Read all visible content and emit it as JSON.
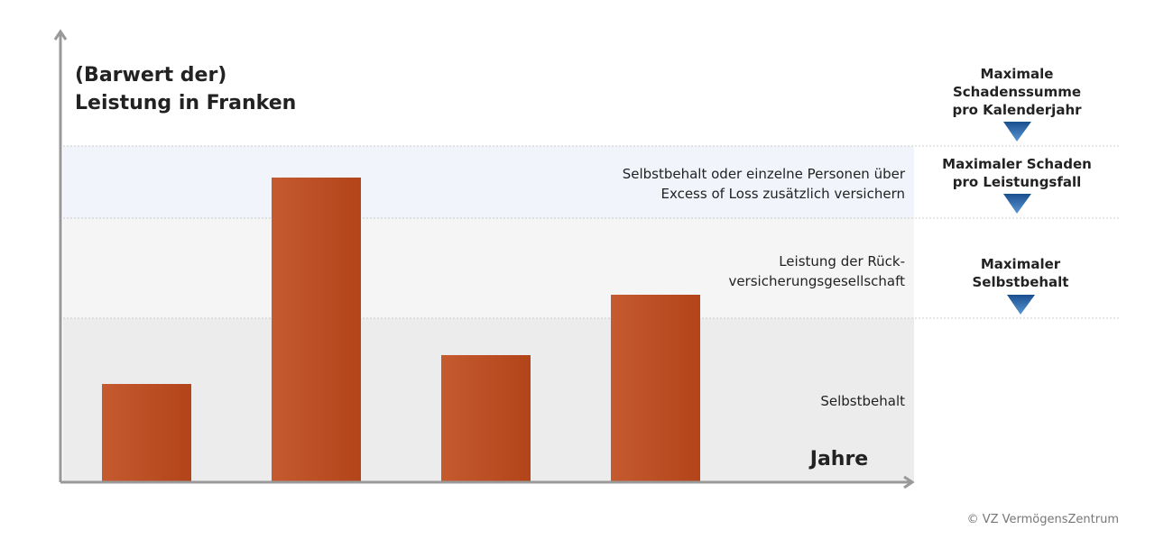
{
  "title": [
    "(Barwert der)",
    "Leistung in Franken"
  ],
  "bands": [
    {
      "label": [
        "Selbstbehalt oder einzelne Personen über",
        "Excess of Loss zusätzlich versichern"
      ]
    },
    {
      "label": [
        "Leistung der Rück-",
        "versicherungsgesellschaft"
      ]
    },
    {
      "label": [
        "Selbstbehalt"
      ]
    }
  ],
  "limits": [
    {
      "label": [
        "Maximale",
        "Schadenssumme",
        "pro Kalenderjahr"
      ]
    },
    {
      "label": [
        "Maximaler Schaden",
        "pro Leistungsfall"
      ]
    },
    {
      "label": [
        "Maximaler",
        "Selbstbehalt"
      ]
    }
  ],
  "x_axis_label": "Jahre",
  "copyright": "© VZ VermögensZentrum"
}
